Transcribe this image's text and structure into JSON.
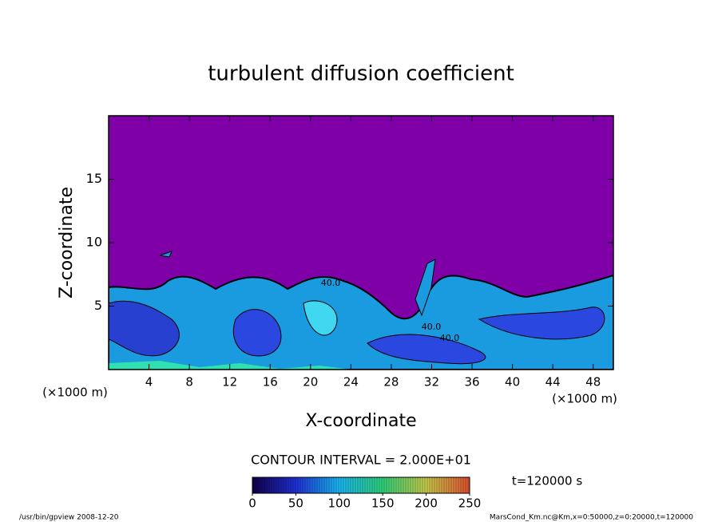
{
  "chart_data": {
    "type": "contour",
    "title": "turbulent diffusion coefficient",
    "xlabel": "X-coordinate",
    "ylabel": "Z-coordinate",
    "xunit": "(×1000 m)",
    "yunit": "(×1000 m)",
    "xlim": [
      0,
      50
    ],
    "xticks": [
      4,
      8,
      12,
      16,
      20,
      24,
      28,
      32,
      36,
      40,
      44,
      48
    ],
    "ylim": [
      0,
      20
    ],
    "yticks": [
      5,
      10,
      15
    ],
    "contour_labels": [
      "40.0",
      "40.0",
      "40.0"
    ],
    "contour_interval": "CONTOUR INTERVAL = 2.000E+01",
    "time_label": "t=120000 s",
    "clim": [
      0,
      250
    ],
    "cticks": [
      0,
      50,
      100,
      150,
      200,
      250
    ],
    "colors": [
      "#10004a",
      "#1f2fd8",
      "#19b6f0",
      "#2fd07a",
      "#c8c84a",
      "#e05030"
    ],
    "footer_left": "/usr/bin/gpview   2008-12-20",
    "footer_right": "MarsCond_Km.nc@Km,x=0:50000,z=0:20000,t=120000"
  }
}
